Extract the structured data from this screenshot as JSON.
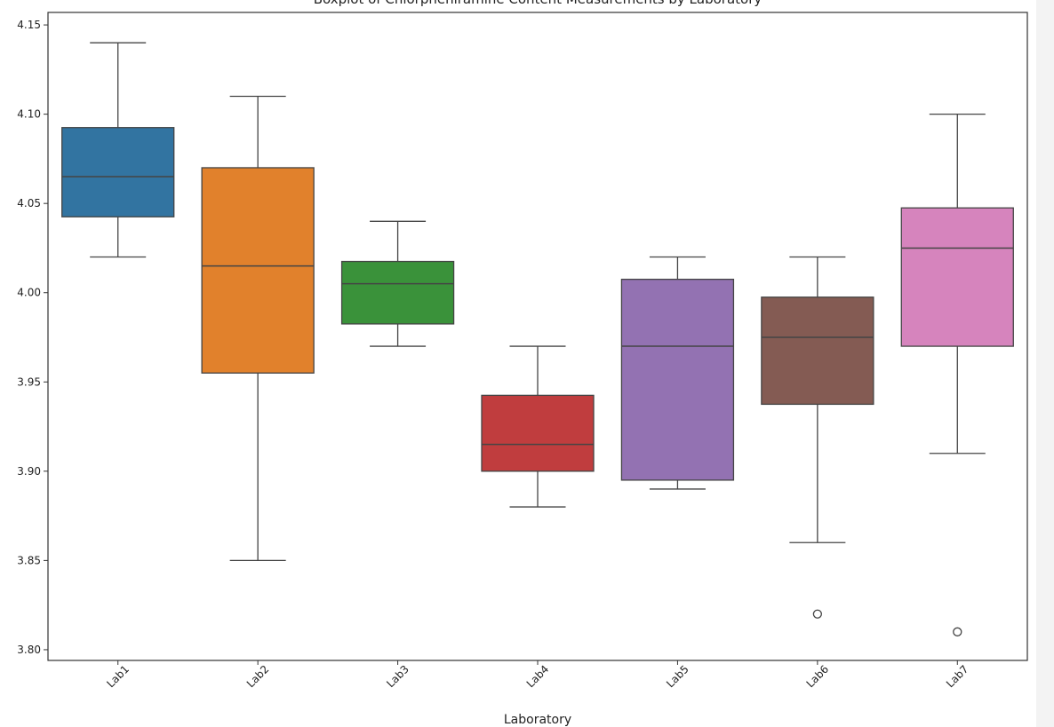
{
  "chart_data": {
    "type": "box",
    "title": "Boxplot of Chlorpheniramine Content Measurements by Laboratory",
    "xlabel": "Laboratory",
    "ylabel": "",
    "ylim": [
      3.794,
      4.157
    ],
    "yticks": [
      "3.80",
      "3.85",
      "3.90",
      "3.95",
      "4.00",
      "4.05",
      "4.10",
      "4.15"
    ],
    "grid": false,
    "categories": [
      "Lab1",
      "Lab2",
      "Lab3",
      "Lab4",
      "Lab5",
      "Lab6",
      "Lab7"
    ],
    "boxes": [
      {
        "name": "Lab1",
        "whisker_low": 4.02,
        "q1": 4.0425,
        "median": 4.065,
        "q3": 4.0925,
        "whisker_high": 4.14,
        "outliers": [],
        "color": "#3274a1"
      },
      {
        "name": "Lab2",
        "whisker_low": 3.85,
        "q1": 3.955,
        "median": 4.015,
        "q3": 4.07,
        "whisker_high": 4.11,
        "outliers": [],
        "color": "#e1812c"
      },
      {
        "name": "Lab3",
        "whisker_low": 3.97,
        "q1": 3.9825,
        "median": 4.005,
        "q3": 4.0175,
        "whisker_high": 4.04,
        "outliers": [],
        "color": "#3a923a"
      },
      {
        "name": "Lab4",
        "whisker_low": 3.88,
        "q1": 3.9,
        "median": 3.915,
        "q3": 3.9425,
        "whisker_high": 3.97,
        "outliers": [],
        "color": "#c03d3e"
      },
      {
        "name": "Lab5",
        "whisker_low": 3.89,
        "q1": 3.895,
        "median": 3.97,
        "q3": 4.0075,
        "whisker_high": 4.02,
        "outliers": [],
        "color": "#9372b2"
      },
      {
        "name": "Lab6",
        "whisker_low": 3.86,
        "q1": 3.9375,
        "median": 3.975,
        "q3": 3.9975,
        "whisker_high": 4.02,
        "outliers": [
          3.82
        ],
        "color": "#845b53"
      },
      {
        "name": "Lab7",
        "whisker_low": 3.91,
        "q1": 3.97,
        "median": 4.025,
        "q3": 4.0475,
        "whisker_high": 4.1,
        "outliers": [
          3.81
        ],
        "color": "#d684bd"
      }
    ]
  }
}
